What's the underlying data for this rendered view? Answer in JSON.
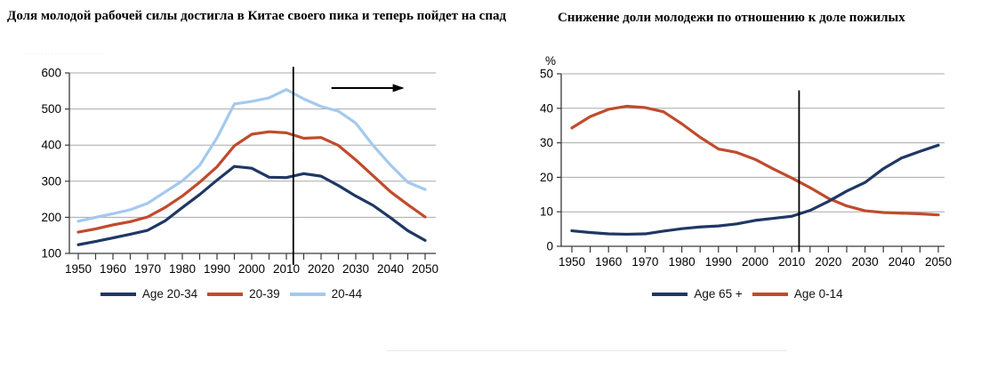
{
  "page": {
    "background": "#ffffff",
    "faint_label": "·························"
  },
  "chart_data": [
    {
      "type": "line",
      "title": "Доля молодой рабочей силы достигла в Китае своего пика и теперь пойдет на спад",
      "xlabel": "",
      "ylabel": "",
      "xlim": [
        1950,
        2050
      ],
      "ylim": [
        100,
        600
      ],
      "y_ticks": [
        100,
        200,
        300,
        400,
        500,
        600
      ],
      "x_tick_labels": [
        1950,
        1960,
        1970,
        1980,
        1990,
        2000,
        2010,
        2020,
        2030,
        2040,
        2050
      ],
      "x_minor_step": 5,
      "grid": true,
      "legend_position": "bottom",
      "x": [
        1950,
        1955,
        1960,
        1965,
        1970,
        1975,
        1980,
        1985,
        1990,
        1995,
        2000,
        2005,
        2010,
        2015,
        2020,
        2025,
        2030,
        2035,
        2040,
        2045,
        2050
      ],
      "series": [
        {
          "name": "Age 20-34",
          "color": "#1F3864",
          "values": [
            124,
            133,
            143,
            153,
            164,
            190,
            227,
            263,
            303,
            341,
            336,
            311,
            310,
            321,
            314,
            288,
            259,
            233,
            199,
            163,
            136
          ]
        },
        {
          "name": "20-39",
          "color": "#C04B2C",
          "values": [
            159,
            168,
            179,
            188,
            201,
            227,
            259,
            297,
            340,
            398,
            430,
            437,
            434,
            419,
            421,
            399,
            359,
            315,
            271,
            235,
            201
          ]
        },
        {
          "name": "20-44",
          "color": "#A4C9ED",
          "values": [
            189,
            200,
            210,
            221,
            239,
            270,
            301,
            344,
            420,
            514,
            521,
            531,
            554,
            528,
            507,
            494,
            461,
            399,
            345,
            297,
            277
          ]
        }
      ],
      "marker_line": {
        "year": 2012,
        "top_value": 617,
        "bottom_value": 68
      },
      "arrow_annotation": {
        "from_year": 2023,
        "to_year": 2044,
        "at_value": 558
      }
    },
    {
      "type": "line",
      "title": "Снижение доли молодежи по отношению к доле пожилых",
      "xlabel": "",
      "ylabel": "%",
      "xlim": [
        1950,
        2050
      ],
      "ylim": [
        0,
        50
      ],
      "y_ticks": [
        0,
        10,
        20,
        30,
        40,
        50
      ],
      "x_tick_labels": [
        1950,
        1960,
        1970,
        1980,
        1990,
        2000,
        2010,
        2020,
        2030,
        2040,
        2050
      ],
      "x_minor_step": 5,
      "grid": true,
      "legend_position": "bottom",
      "x": [
        1950,
        1955,
        1960,
        1965,
        1970,
        1975,
        1980,
        1985,
        1990,
        1995,
        2000,
        2005,
        2010,
        2015,
        2020,
        2025,
        2030,
        2035,
        2040,
        2045,
        2050
      ],
      "series": [
        {
          "name": "Age 65 +",
          "color": "#1F3864",
          "values": [
            4.5,
            4.0,
            3.6,
            3.5,
            3.6,
            4.4,
            5.1,
            5.6,
            5.9,
            6.5,
            7.5,
            8.1,
            8.7,
            10.4,
            13.0,
            16.0,
            18.5,
            22.5,
            25.6,
            27.5,
            29.3
          ]
        },
        {
          "name": "Age 0-14",
          "color": "#C04B2C",
          "values": [
            34.3,
            37.6,
            39.7,
            40.6,
            40.2,
            39.0,
            35.5,
            31.6,
            28.2,
            27.2,
            25.2,
            22.4,
            19.8,
            17.0,
            13.9,
            11.7,
            10.3,
            9.8,
            9.6,
            9.4,
            9.1
          ]
        }
      ],
      "marker_line": {
        "year": 2012,
        "top_value": 45.2,
        "bottom_value": -1.6
      }
    }
  ]
}
